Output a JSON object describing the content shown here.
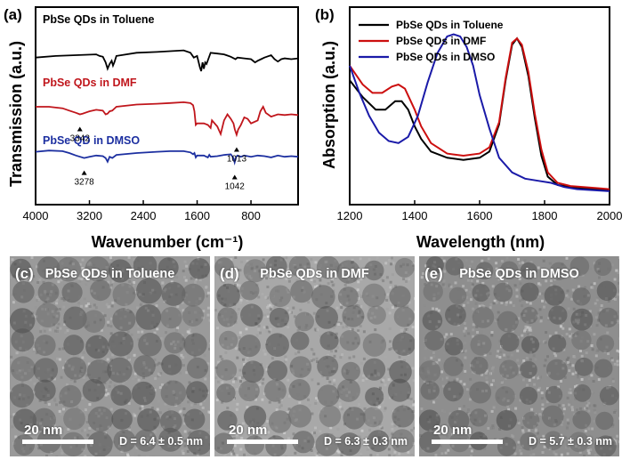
{
  "chart_data": [
    {
      "panel": "(a)",
      "type": "line",
      "xlabel": "Wavenumber (cm⁻¹)",
      "ylabel": "Transmission (a.u.)",
      "xlim": [
        4000,
        100
      ],
      "xticks": [
        4000,
        3200,
        2400,
        1600,
        800
      ],
      "series": [
        {
          "name": "PbSe QDs in Toluene",
          "color": "#000000",
          "x": [
            4000,
            3700,
            3400,
            3100,
            3050,
            3000,
            2960,
            2930,
            2900,
            2870,
            2850,
            2830,
            2800,
            2500,
            2200,
            2000,
            1800,
            1700,
            1650,
            1600,
            1560,
            1540,
            1520,
            1500,
            1480,
            1460,
            1400,
            1300,
            1200,
            1100,
            1030,
            1000,
            900,
            800,
            740,
            700,
            650,
            600,
            500,
            450,
            400,
            350,
            300,
            200,
            100
          ],
          "y": [
            0.72,
            0.74,
            0.75,
            0.76,
            0.74,
            0.73,
            0.66,
            0.58,
            0.64,
            0.68,
            0.62,
            0.66,
            0.74,
            0.78,
            0.79,
            0.8,
            0.81,
            0.78,
            0.72,
            0.74,
            0.6,
            0.55,
            0.66,
            0.58,
            0.66,
            0.64,
            0.78,
            0.77,
            0.76,
            0.73,
            0.7,
            0.72,
            0.71,
            0.7,
            0.66,
            0.68,
            0.7,
            0.72,
            0.75,
            0.7,
            0.67,
            0.7,
            0.71,
            0.7,
            0.71
          ]
        },
        {
          "name": "PbSe QDs in DMF",
          "color": "#c0161c",
          "x": [
            4000,
            3800,
            3600,
            3500,
            3400,
            3342,
            3300,
            3200,
            3100,
            3000,
            2960,
            2930,
            2900,
            2860,
            2800,
            2500,
            2200,
            2000,
            1800,
            1700,
            1660,
            1640,
            1620,
            1600,
            1500,
            1440,
            1400,
            1380,
            1300,
            1250,
            1200,
            1150,
            1100,
            1060,
            1040,
            1013,
            990,
            950,
            900,
            850,
            800,
            700,
            660,
            620,
            580,
            500,
            400,
            300,
            200,
            100
          ],
          "y": [
            0.46,
            0.46,
            0.44,
            0.41,
            0.38,
            0.36,
            0.37,
            0.4,
            0.42,
            0.41,
            0.36,
            0.37,
            0.4,
            0.41,
            0.46,
            0.49,
            0.5,
            0.51,
            0.52,
            0.51,
            0.48,
            0.4,
            0.22,
            0.24,
            0.24,
            0.22,
            0.18,
            0.28,
            0.2,
            0.1,
            0.28,
            0.36,
            0.3,
            0.24,
            0.16,
            0.09,
            0.16,
            0.22,
            0.32,
            0.3,
            0.24,
            0.28,
            0.4,
            0.46,
            0.38,
            0.33,
            0.36,
            0.35,
            0.36,
            0.35
          ]
        },
        {
          "name": "PbSe QD in DMSO",
          "color": "#1c2fa0",
          "x": [
            4000,
            3800,
            3600,
            3500,
            3400,
            3278,
            3200,
            3100,
            3000,
            2960,
            2930,
            2900,
            2860,
            2800,
            2500,
            2200,
            2000,
            1800,
            1700,
            1660,
            1640,
            1620,
            1600,
            1500,
            1440,
            1420,
            1400,
            1300,
            1200,
            1100,
            1060,
            1042,
            1020,
            1000,
            950,
            900,
            800,
            700,
            600,
            500,
            400,
            300,
            200,
            100
          ],
          "y": [
            0.02,
            0.04,
            0.03,
            0.0,
            -0.04,
            -0.08,
            -0.06,
            -0.04,
            -0.05,
            -0.08,
            -0.14,
            -0.06,
            -0.08,
            -0.03,
            0.0,
            0.02,
            0.03,
            0.03,
            0.01,
            -0.02,
            0.0,
            -0.07,
            -0.04,
            -0.04,
            -0.07,
            -0.03,
            -0.06,
            -0.05,
            -0.03,
            -0.02,
            -0.08,
            -0.15,
            -0.06,
            -0.04,
            -0.06,
            -0.04,
            -0.06,
            -0.04,
            -0.05,
            -0.07,
            -0.04,
            -0.06,
            -0.05,
            -0.06
          ]
        }
      ],
      "annotations": [
        {
          "text": "3342",
          "x": 3342,
          "y": 0.36,
          "color": "#000000"
        },
        {
          "text": "1013",
          "x": 1013,
          "y": 0.09,
          "color": "#000000"
        },
        {
          "text": "3278",
          "x": 3278,
          "y": -0.08,
          "color": "#000000"
        },
        {
          "text": "1042",
          "x": 1042,
          "y": -0.15,
          "color": "#000000"
        }
      ],
      "series_labels": [
        {
          "text": "PbSe QDs in Toluene",
          "color": "#000000"
        },
        {
          "text": "PbSe QDs in DMF",
          "color": "#c0161c"
        },
        {
          "text": "PbSe QD in DMSO",
          "color": "#1c2fa0"
        }
      ]
    },
    {
      "panel": "(b)",
      "type": "line",
      "xlabel": "Wavelength (nm)",
      "ylabel": "Absorption (a.u.)",
      "xlim": [
        1200,
        2000
      ],
      "xticks": [
        1200,
        1400,
        1600,
        1800,
        2000
      ],
      "ylim": [
        0,
        1
      ],
      "legend_position": "top-left",
      "series": [
        {
          "name": "PbSe QDs in Toluene",
          "color": "#000000",
          "x": [
            1200,
            1240,
            1280,
            1310,
            1340,
            1360,
            1380,
            1400,
            1420,
            1450,
            1500,
            1550,
            1600,
            1630,
            1660,
            1680,
            1700,
            1715,
            1730,
            1750,
            1770,
            1790,
            1810,
            1840,
            1880,
            1920,
            1960,
            2000
          ],
          "y": [
            0.56,
            0.48,
            0.42,
            0.42,
            0.46,
            0.46,
            0.42,
            0.34,
            0.28,
            0.22,
            0.19,
            0.18,
            0.19,
            0.22,
            0.35,
            0.56,
            0.73,
            0.76,
            0.72,
            0.58,
            0.38,
            0.2,
            0.1,
            0.06,
            0.05,
            0.045,
            0.04,
            0.035
          ]
        },
        {
          "name": "PbSe QDs in DMF",
          "color": "#cc0f0f",
          "x": [
            1200,
            1240,
            1270,
            1300,
            1330,
            1350,
            1370,
            1400,
            1420,
            1450,
            1500,
            1550,
            1600,
            1630,
            1660,
            1680,
            1700,
            1715,
            1730,
            1750,
            1770,
            1790,
            1810,
            1840,
            1880,
            1920,
            1960,
            2000
          ],
          "y": [
            0.63,
            0.54,
            0.5,
            0.5,
            0.53,
            0.54,
            0.52,
            0.42,
            0.34,
            0.26,
            0.21,
            0.2,
            0.21,
            0.24,
            0.36,
            0.57,
            0.74,
            0.76,
            0.73,
            0.6,
            0.4,
            0.23,
            0.12,
            0.07,
            0.055,
            0.05,
            0.045,
            0.04
          ]
        },
        {
          "name": "PbSe QDs in DMSO",
          "color": "#1a1aa8",
          "x": [
            1200,
            1230,
            1260,
            1290,
            1320,
            1350,
            1380,
            1410,
            1440,
            1470,
            1500,
            1520,
            1540,
            1560,
            1580,
            1600,
            1630,
            1660,
            1700,
            1740,
            1780,
            1820,
            1860,
            1900,
            1950,
            2000
          ],
          "y": [
            0.63,
            0.5,
            0.39,
            0.31,
            0.27,
            0.26,
            0.29,
            0.39,
            0.55,
            0.69,
            0.77,
            0.78,
            0.77,
            0.72,
            0.63,
            0.49,
            0.33,
            0.19,
            0.12,
            0.09,
            0.08,
            0.07,
            0.05,
            0.04,
            0.035,
            0.03
          ]
        }
      ]
    }
  ],
  "panels": {
    "a": {
      "label": "(a)"
    },
    "b": {
      "label": "(b)"
    },
    "c": {
      "label": "(c)",
      "title": "PbSe QDs in Toluene",
      "scale": "20 nm",
      "size": "D = 6.4 ± 0.5 nm"
    },
    "d": {
      "label": "(d)",
      "title": "PbSe QDs in DMF",
      "scale": "20 nm",
      "size": "D = 6.3 ± 0.3 nm"
    },
    "e": {
      "label": "(e)",
      "title": "PbSe QDs in DMSO",
      "scale": "20 nm",
      "size": "D = 5.7 ± 0.3 nm"
    }
  }
}
